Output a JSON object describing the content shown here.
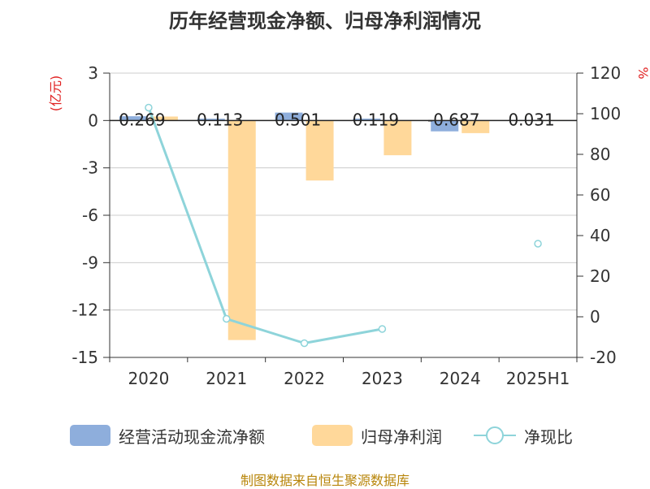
{
  "title": "历年经营现金净额、归母净利润情况",
  "source": "制图数据来自恒生聚源数据库",
  "colors": {
    "cash": "#8eaedc",
    "profit": "#ffd89a",
    "ratio": "#8ed4da",
    "axis_unit": "#e02020",
    "text": "#333333"
  },
  "chart_data": {
    "type": "bar",
    "categories": [
      "2020",
      "2021",
      "2022",
      "2023",
      "2024",
      "2025H1"
    ],
    "left_axis": {
      "label": "(亿元)",
      "min": -15,
      "max": 3,
      "ticks": [
        3,
        0,
        -3,
        -6,
        -9,
        -12,
        -15
      ]
    },
    "right_axis": {
      "label": "%",
      "min": -20,
      "max": 120,
      "ticks": [
        120,
        100,
        80,
        60,
        40,
        20,
        0,
        -20
      ]
    },
    "series": [
      {
        "name": "经营活动现金流净额",
        "kind": "bar",
        "axis": "left",
        "values": [
          0.269,
          0.113,
          0.501,
          0.119,
          -0.687,
          0.031
        ],
        "labels": [
          "0.269",
          "0.113",
          "0.501",
          "0.119",
          "-0.687",
          "0.031"
        ]
      },
      {
        "name": "归母净利润",
        "kind": "bar",
        "axis": "left",
        "values": [
          0.25,
          -13.9,
          -3.8,
          -2.2,
          -0.8,
          0.02
        ]
      },
      {
        "name": "净现比",
        "kind": "line",
        "axis": "right",
        "values": [
          103,
          -1,
          -13,
          -6,
          null,
          36
        ]
      }
    ],
    "grid": true,
    "legend_position": "bottom"
  }
}
